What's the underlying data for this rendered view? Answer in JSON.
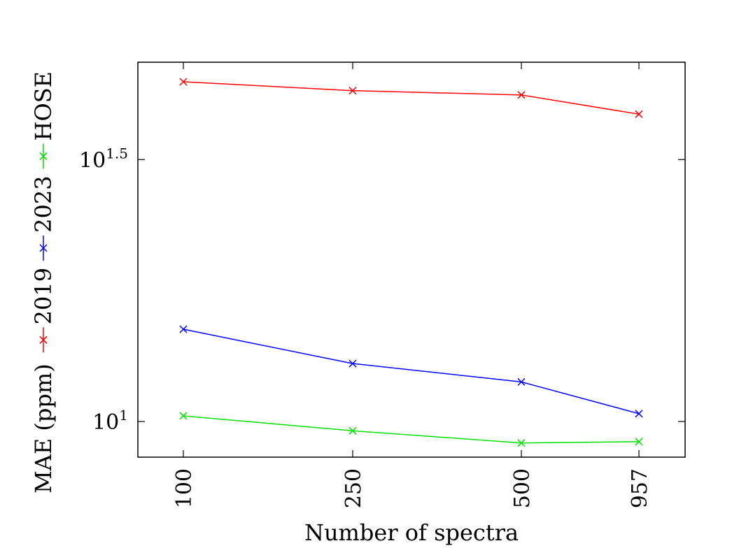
{
  "chart_data": {
    "type": "line",
    "xlabel": "Number of spectra",
    "ylabel": "MAE (ppm)",
    "categories": [
      "100",
      "250",
      "500",
      "957"
    ],
    "y_scale": "log",
    "ylim": [
      8.55,
      48.5
    ],
    "y_ticks": [
      {
        "value": 10,
        "base": "10",
        "exp": "1"
      },
      {
        "value": 31.62,
        "base": "10",
        "exp": "1.5"
      }
    ],
    "grid": false,
    "legend_position": "left (vertical, rotated)",
    "series": [
      {
        "name": "2019",
        "color": "#ff0000",
        "values": [
          44.5,
          42.8,
          42.0,
          38.6
        ]
      },
      {
        "name": "2023",
        "color": "#0000ff",
        "values": [
          15.0,
          12.9,
          11.9,
          10.35
        ]
      },
      {
        "name": "HOSE",
        "color": "#00e000",
        "values": [
          10.25,
          9.6,
          9.1,
          9.15
        ]
      }
    ]
  }
}
